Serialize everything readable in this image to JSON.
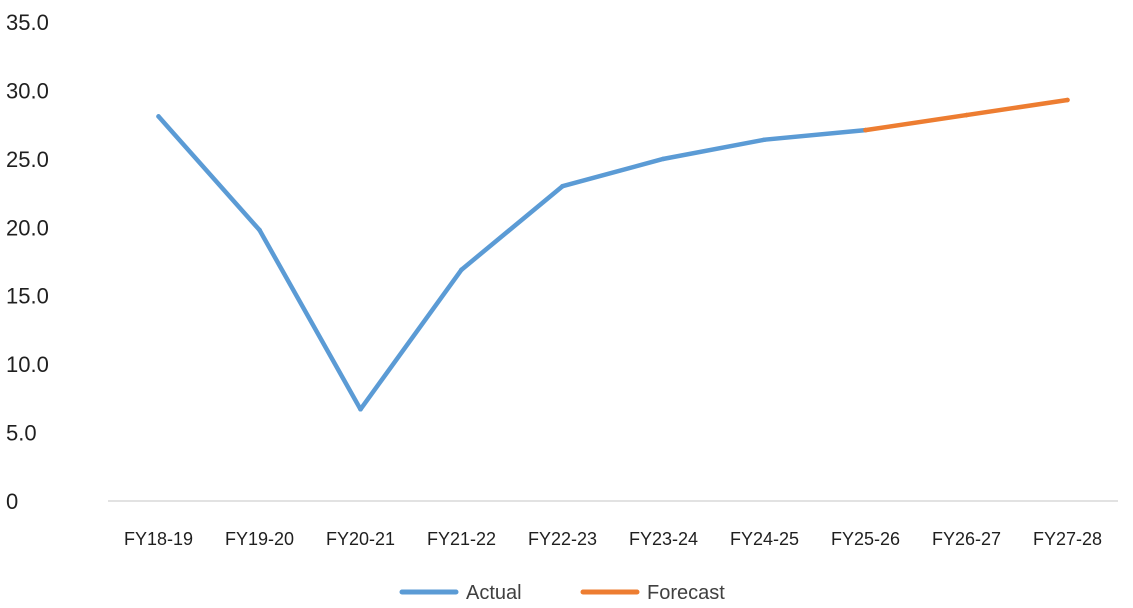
{
  "chart_data": {
    "type": "line",
    "title": "",
    "xlabel": "",
    "ylabel": "",
    "categories": [
      "FY18-19",
      "FY19-20",
      "FY20-21",
      "FY21-22",
      "FY22-23",
      "FY23-24",
      "FY24-25",
      "FY25-26",
      "FY26-27",
      "FY27-28"
    ],
    "y_tick_labels": [
      "0",
      "5.0",
      "10.0",
      "15.0",
      "20.0",
      "25.0",
      "30.0",
      "35.0"
    ],
    "ylim": [
      0,
      35
    ],
    "grid": false,
    "legend_position": "bottom",
    "series": [
      {
        "name": "Actual",
        "color": "#5B9BD5",
        "values": [
          28.1,
          19.8,
          6.7,
          16.9,
          23.0,
          25.0,
          26.4,
          27.1,
          null,
          null
        ]
      },
      {
        "name": "Forecast",
        "color": "#ED7D31",
        "values": [
          null,
          null,
          null,
          null,
          null,
          null,
          null,
          27.1,
          28.2,
          29.3
        ]
      }
    ]
  }
}
